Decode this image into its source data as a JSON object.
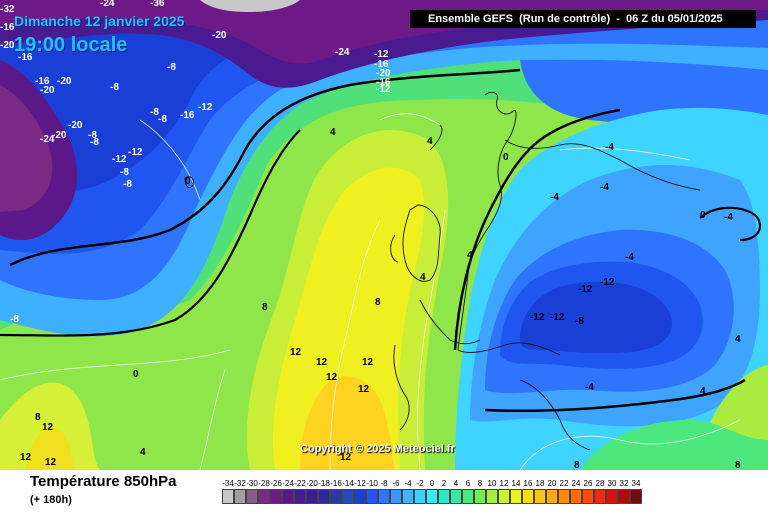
{
  "header": {
    "date": "Dimanche 12 janvier 2025",
    "local_time": "19:00 locale",
    "run_info": "Ensemble GEFS  (Run de contrôle)  -  06 Z du 05/01/2025"
  },
  "map": {
    "copyright": "Copyright © 2025 Meteociel.fr",
    "isotherm_labels": [
      "-32",
      "-36",
      "-20",
      "-24",
      "-16",
      "-20",
      "-16",
      "-12",
      "-8",
      "-20",
      "-16",
      "-20",
      "-8",
      "-8",
      "-12",
      "-16",
      "-20",
      "-24",
      "-20",
      "-8",
      "-8",
      "-12",
      "-8",
      "-8",
      "-8",
      "-12",
      "-16",
      "-24",
      "-20",
      "-16",
      "-12",
      "-8",
      "0",
      "4",
      "4",
      "0",
      "-4",
      "-4",
      "-4",
      "0",
      "-4",
      "-4",
      "-12",
      "-12",
      "-12",
      "-12",
      "-8",
      "-4",
      "4",
      "8",
      "8",
      "12",
      "12",
      "12",
      "12",
      "12",
      "12",
      "12",
      "12",
      "0",
      "-8",
      "8",
      "12",
      "4",
      "4",
      "8",
      "-12",
      "4",
      "4",
      "8"
    ]
  },
  "footer": {
    "parameter": "Température 850hPa",
    "lead_time": "(+ 180h)"
  },
  "legend": {
    "ticks": [
      "-34",
      "-32",
      "-30",
      "-28",
      "-26",
      "-24",
      "-22",
      "-20",
      "-18",
      "-16",
      "-14",
      "-12",
      "-10",
      "-8",
      "-6",
      "-4",
      "-2",
      "0",
      "2",
      "4",
      "6",
      "8",
      "10",
      "12",
      "14",
      "16",
      "18",
      "20",
      "22",
      "24",
      "26",
      "28",
      "30",
      "32",
      "34"
    ],
    "colors": [
      "#c8c8c8",
      "#a0a0a0",
      "#8c5a8c",
      "#7a2a82",
      "#6e1a86",
      "#5a1888",
      "#4a1a90",
      "#3b1c96",
      "#2a2a98",
      "#283aa8",
      "#1f4ac0",
      "#1a3fd6",
      "#1f56f0",
      "#2f74ff",
      "#3a97ff",
      "#3fb4ff",
      "#41cfff",
      "#3fe8f0",
      "#2fe6c8",
      "#35e6a4",
      "#4ce87e",
      "#73ec5a",
      "#a1f040",
      "#cdf230",
      "#f0f020",
      "#ffde10",
      "#ffc410",
      "#ffa810",
      "#ff8a0a",
      "#ff6a0a",
      "#ff4a0a",
      "#ee2a0a",
      "#d2140a",
      "#b00a0a",
      "#7a0a0a"
    ]
  }
}
